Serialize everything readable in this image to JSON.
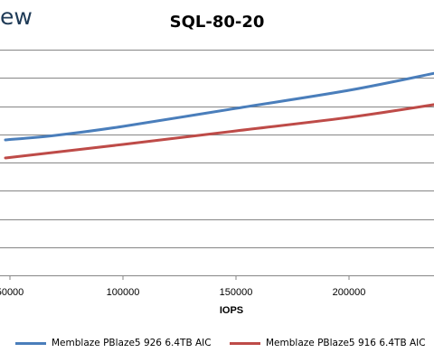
{
  "header": {
    "logo_fragment": "ew",
    "title": "SQL-80-20"
  },
  "colors": {
    "series_1": "#4a7ebb",
    "series_2": "#be4b48",
    "gridline": "#868686",
    "logo": "#1f3b57"
  },
  "chart_data": {
    "type": "line",
    "title": "SQL-80-20",
    "xlabel": "IOPS",
    "ylabel": "",
    "x_ticks": [
      50000,
      100000,
      150000,
      200000
    ],
    "x_tick_labels": [
      "50000",
      "100000",
      "150000",
      "200000"
    ],
    "xlim": [
      48000,
      240000
    ],
    "y_gridlines": 9,
    "grid": "horizontal",
    "legend_position": "bottom",
    "series": [
      {
        "name": "Memblaze PBlaze5 926 6.4TB AIC",
        "color": "#4a7ebb",
        "x": [
          48000,
          70000,
          100000,
          150000,
          200000,
          240000
        ],
        "y": [
          0.3,
          0.31,
          0.33,
          0.37,
          0.41,
          0.45
        ]
      },
      {
        "name": "Memblaze PBlaze5 916 6.4TB AIC",
        "color": "#be4b48",
        "x": [
          48000,
          100000,
          150000,
          200000,
          240000
        ],
        "y": [
          0.26,
          0.29,
          0.32,
          0.35,
          0.38
        ]
      }
    ]
  }
}
